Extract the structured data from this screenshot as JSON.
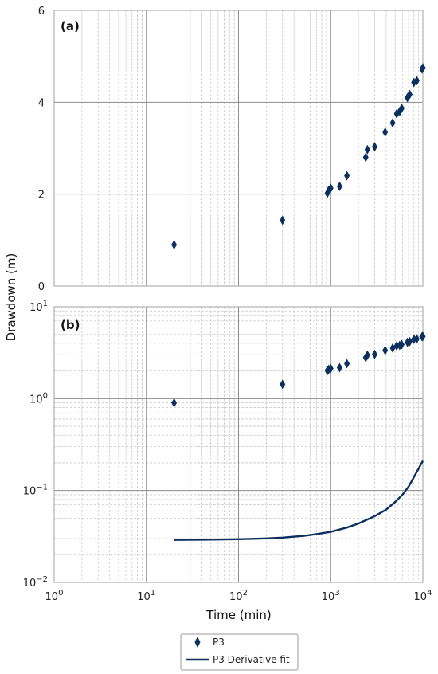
{
  "chart_data": [
    {
      "panel_label": "(a)",
      "type": "scatter",
      "x_scale": "log",
      "y_scale": "linear",
      "xlim": [
        1,
        10000
      ],
      "ylim": [
        0,
        6
      ],
      "y_ticks": [
        "0",
        "2",
        "4",
        "6"
      ],
      "grid": true,
      "series": [
        {
          "name": "P3",
          "marker": "diamond",
          "x": [
            20,
            300,
            920,
            950,
            1000,
            1250,
            1500,
            2400,
            2500,
            3000,
            3900,
            4700,
            5200,
            5600,
            5900,
            6800,
            7200,
            8000,
            8600,
            9800,
            10000
          ],
          "y": [
            0.9,
            1.43,
            2.02,
            2.08,
            2.13,
            2.17,
            2.4,
            2.8,
            2.97,
            3.03,
            3.35,
            3.55,
            3.75,
            3.8,
            3.87,
            4.1,
            4.17,
            4.43,
            4.47,
            4.72,
            4.75
          ]
        }
      ]
    },
    {
      "panel_label": "(b)",
      "type": "scatter+line",
      "x_scale": "log",
      "y_scale": "log",
      "xlim": [
        1,
        10000
      ],
      "ylim": [
        0.01,
        10
      ],
      "grid": true,
      "series": [
        {
          "name": "P3",
          "marker": "diamond",
          "x": [
            20,
            300,
            920,
            950,
            1000,
            1250,
            1500,
            2400,
            2500,
            3000,
            3900,
            4700,
            5200,
            5600,
            5900,
            6800,
            7200,
            8000,
            8600,
            9800,
            10000
          ],
          "y": [
            0.9,
            1.43,
            2.02,
            2.08,
            2.13,
            2.17,
            2.4,
            2.8,
            2.97,
            3.03,
            3.35,
            3.55,
            3.75,
            3.8,
            3.87,
            4.1,
            4.17,
            4.43,
            4.47,
            4.72,
            4.75
          ]
        },
        {
          "name": "P3 Derivative fit",
          "line": "solid",
          "x": [
            20,
            50,
            100,
            200,
            300,
            500,
            700,
            1000,
            1500,
            2000,
            3000,
            4000,
            5000,
            6000,
            7000,
            8000,
            10000
          ],
          "y": [
            0.029,
            0.0292,
            0.0295,
            0.0301,
            0.0307,
            0.032,
            0.0335,
            0.0355,
            0.0395,
            0.0437,
            0.0525,
            0.062,
            0.075,
            0.09,
            0.11,
            0.14,
            0.21
          ]
        }
      ]
    }
  ],
  "axes": {
    "xlabel": "Time (min)",
    "ylabel": "Drawdown (m)",
    "x_ticks": [
      {
        "base": "10",
        "exp": "0"
      },
      {
        "base": "10",
        "exp": "1"
      },
      {
        "base": "10",
        "exp": "2"
      },
      {
        "base": "10",
        "exp": "3"
      },
      {
        "base": "10",
        "exp": "4"
      }
    ],
    "panel_b_y_ticks": [
      {
        "base": "10",
        "exp": "−2"
      },
      {
        "base": "10",
        "exp": "−1"
      },
      {
        "base": "10",
        "exp": "0"
      },
      {
        "base": "10",
        "exp": "1"
      }
    ]
  },
  "legend": {
    "placement": "bottom-center",
    "entries": [
      "P3",
      "P3 Derivative fit"
    ]
  },
  "colors": {
    "series": "#0d2f5e",
    "major_grid": "#8c8c8c",
    "minor_grid": "#c8c8c8",
    "frame": "#b0b0b0"
  }
}
